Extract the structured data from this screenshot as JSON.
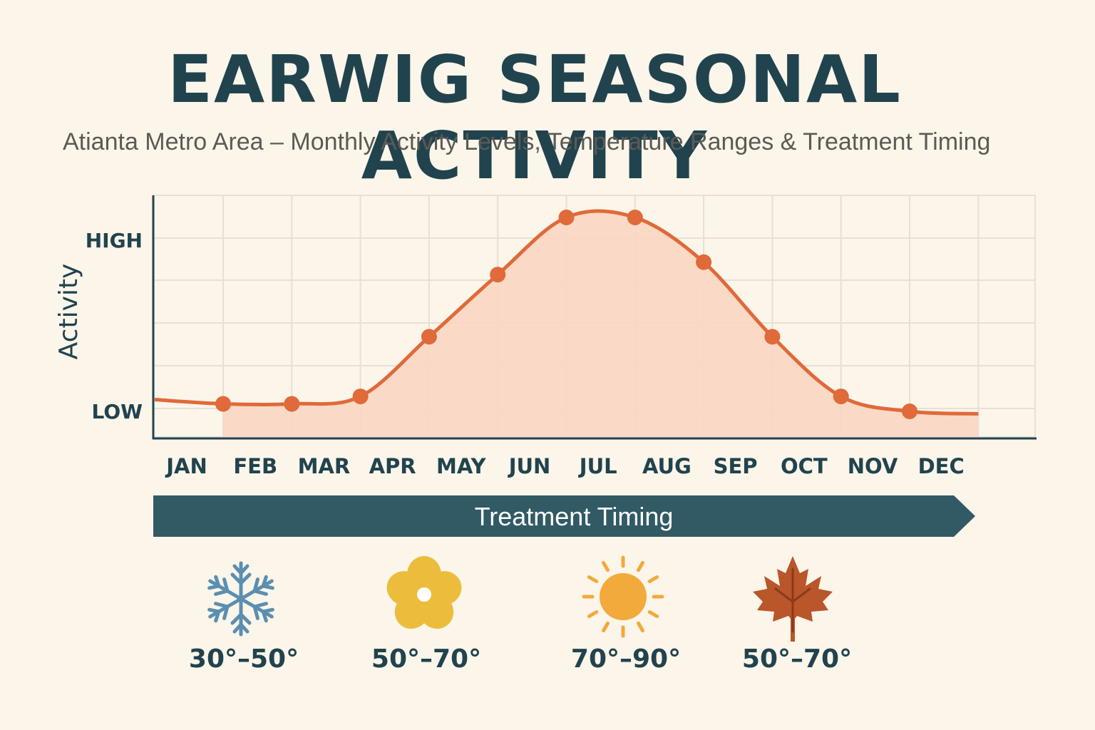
{
  "header": {
    "title": "EARWIG SEASONAL ACTIVITY",
    "subtitle": "Atianta Metro Area – Monthly Activity Levels, Temperature Ranges & Treatment Timing"
  },
  "chart_data": {
    "type": "area",
    "ylabel": "Activity",
    "yticks": [
      "LOW",
      "HIGH"
    ],
    "ylim": [
      0,
      100
    ],
    "categories": [
      "JAN",
      "FEB",
      "MAR",
      "APR",
      "MAY",
      "JUN",
      "JUL",
      "AUG",
      "SEP",
      "OCT",
      "NOV",
      "DEC"
    ],
    "values": [
      3,
      3,
      6,
      30,
      55,
      78,
      78,
      60,
      30,
      6,
      0,
      -1
    ],
    "grid": true,
    "legend": "none",
    "line_color": "#e06a3a",
    "fill_color": "#f9d6c2"
  },
  "treatment": {
    "label": "Treatment Timing",
    "color": "#315a65"
  },
  "seasons": [
    {
      "icon": "snowflake-icon",
      "range": "30°–50°",
      "color": "#5b8fb1"
    },
    {
      "icon": "flower-icon",
      "range": "50°–70°",
      "color": "#ecbd3c"
    },
    {
      "icon": "sun-icon",
      "range": "70°–90°",
      "color": "#f2aa3c"
    },
    {
      "icon": "maple-leaf-icon",
      "range": "50°–70°",
      "color": "#b9562a"
    }
  ]
}
